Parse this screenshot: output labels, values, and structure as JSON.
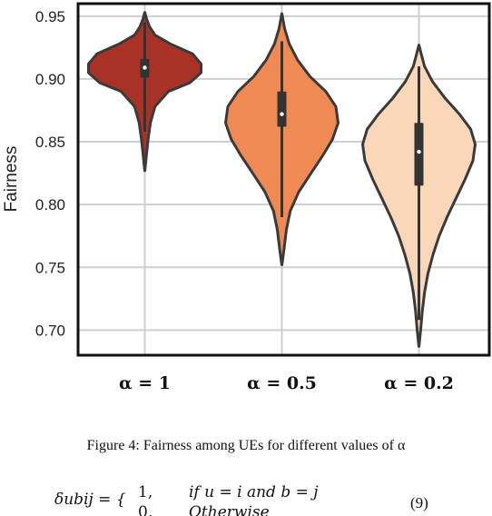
{
  "chart_data": {
    "type": "violin",
    "title": "",
    "xlabel": "",
    "ylabel": "Fairness",
    "ylim": [
      0.68,
      0.96
    ],
    "yticks": [
      0.7,
      0.75,
      0.8,
      0.85,
      0.9,
      0.95
    ],
    "ytick_labels": [
      "0.70",
      "0.75",
      "0.80",
      "0.85",
      "0.90",
      "0.95"
    ],
    "grid": true,
    "categories": [
      "α = 1",
      "α = 0.5",
      "α = 0.2"
    ],
    "series": [
      {
        "color": "#a93226",
        "min": 0.827,
        "max": 0.953,
        "q1": 0.901,
        "median": 0.909,
        "q3": 0.916,
        "whisker_low": 0.858,
        "whisker_high": 0.945,
        "density": [
          [
            0.827,
            0.002
          ],
          [
            0.84,
            0.03
          ],
          [
            0.852,
            0.06
          ],
          [
            0.865,
            0.1
          ],
          [
            0.878,
            0.18
          ],
          [
            0.89,
            0.42
          ],
          [
            0.897,
            0.8
          ],
          [
            0.905,
            1.0
          ],
          [
            0.912,
            1.0
          ],
          [
            0.92,
            0.85
          ],
          [
            0.928,
            0.45
          ],
          [
            0.935,
            0.18
          ],
          [
            0.942,
            0.08
          ],
          [
            0.948,
            0.03
          ],
          [
            0.953,
            0.002
          ]
        ]
      },
      {
        "color": "#f08a55",
        "min": 0.752,
        "max": 0.952,
        "q1": 0.862,
        "median": 0.872,
        "q3": 0.89,
        "whisker_low": 0.79,
        "whisker_high": 0.93,
        "density": [
          [
            0.752,
            0.002
          ],
          [
            0.765,
            0.04
          ],
          [
            0.78,
            0.08
          ],
          [
            0.795,
            0.15
          ],
          [
            0.81,
            0.3
          ],
          [
            0.825,
            0.52
          ],
          [
            0.84,
            0.74
          ],
          [
            0.852,
            0.9
          ],
          [
            0.865,
            1.0
          ],
          [
            0.878,
            0.96
          ],
          [
            0.89,
            0.78
          ],
          [
            0.902,
            0.5
          ],
          [
            0.915,
            0.28
          ],
          [
            0.928,
            0.13
          ],
          [
            0.94,
            0.05
          ],
          [
            0.952,
            0.002
          ]
        ]
      },
      {
        "color": "#fad7b8",
        "min": 0.687,
        "max": 0.927,
        "q1": 0.815,
        "median": 0.842,
        "q3": 0.865,
        "whisker_low": 0.708,
        "whisker_high": 0.91,
        "density": [
          [
            0.687,
            0.002
          ],
          [
            0.7,
            0.03
          ],
          [
            0.715,
            0.06
          ],
          [
            0.73,
            0.1
          ],
          [
            0.745,
            0.16
          ],
          [
            0.76,
            0.25
          ],
          [
            0.775,
            0.36
          ],
          [
            0.79,
            0.5
          ],
          [
            0.805,
            0.66
          ],
          [
            0.82,
            0.82
          ],
          [
            0.835,
            0.96
          ],
          [
            0.848,
            1.0
          ],
          [
            0.86,
            0.92
          ],
          [
            0.872,
            0.72
          ],
          [
            0.885,
            0.46
          ],
          [
            0.898,
            0.24
          ],
          [
            0.91,
            0.1
          ],
          [
            0.92,
            0.04
          ],
          [
            0.927,
            0.002
          ]
        ]
      }
    ]
  },
  "caption": "Figure 4: Fairness among UEs for different values of α",
  "equation": {
    "lhs": "δubij = {",
    "case1_value": "1,",
    "case1_condition": "if u = i and b = j",
    "case2_value": "0,",
    "case2_condition": "Otherwise",
    "number": "(9)"
  }
}
